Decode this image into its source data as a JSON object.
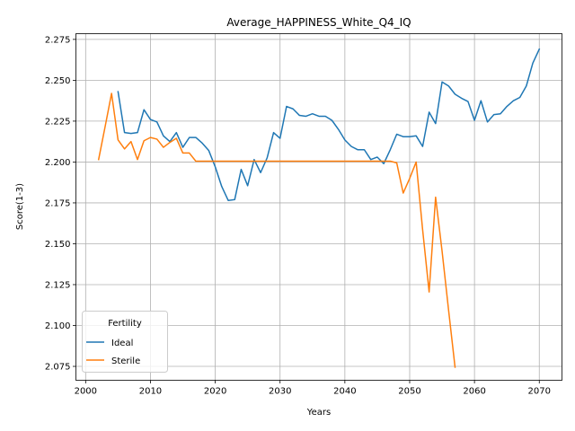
{
  "chart_data": {
    "type": "line",
    "title": "Average_HAPPINESS_White_Q4_IQ",
    "xlabel": "Years",
    "ylabel": "Score(1-3)",
    "xlim": [
      1998.5,
      2073.5
    ],
    "ylim": [
      2.0665,
      2.2785
    ],
    "xticks": [
      2000,
      2010,
      2020,
      2030,
      2040,
      2050,
      2060,
      2070
    ],
    "yticks": [
      2.075,
      2.1,
      2.125,
      2.15,
      2.175,
      2.2,
      2.225,
      2.25,
      2.275
    ],
    "grid": true,
    "legend": {
      "title": "Fertility",
      "placement": "lower-left"
    },
    "series": [
      {
        "name": "Ideal",
        "color": "#1f77b4",
        "points": [
          [
            2005,
            2.243
          ],
          [
            2006,
            2.218
          ],
          [
            2007,
            2.2175
          ],
          [
            2008,
            2.218
          ],
          [
            2009,
            2.232
          ],
          [
            2010,
            2.226
          ],
          [
            2011,
            2.2245
          ],
          [
            2012,
            2.216
          ],
          [
            2013,
            2.2125
          ],
          [
            2014,
            2.218
          ],
          [
            2015,
            2.209
          ],
          [
            2016,
            2.215
          ],
          [
            2017,
            2.215
          ],
          [
            2018,
            2.2115
          ],
          [
            2019,
            2.207
          ],
          [
            2020,
            2.197
          ],
          [
            2021,
            2.185
          ],
          [
            2022,
            2.1765
          ],
          [
            2023,
            2.177
          ],
          [
            2024,
            2.1955
          ],
          [
            2025,
            2.1855
          ],
          [
            2026,
            2.2015
          ],
          [
            2027,
            2.1935
          ],
          [
            2028,
            2.2025
          ],
          [
            2029,
            2.218
          ],
          [
            2030,
            2.2145
          ],
          [
            2031,
            2.234
          ],
          [
            2032,
            2.2325
          ],
          [
            2033,
            2.2285
          ],
          [
            2034,
            2.228
          ],
          [
            2035,
            2.2295
          ],
          [
            2036,
            2.228
          ],
          [
            2037,
            2.228
          ],
          [
            2038,
            2.2255
          ],
          [
            2039,
            2.22
          ],
          [
            2040,
            2.2135
          ],
          [
            2041,
            2.2095
          ],
          [
            2042,
            2.2075
          ],
          [
            2043,
            2.2075
          ],
          [
            2044,
            2.2015
          ],
          [
            2045,
            2.203
          ],
          [
            2046,
            2.199
          ],
          [
            2047,
            2.2075
          ],
          [
            2048,
            2.217
          ],
          [
            2049,
            2.2155
          ],
          [
            2050,
            2.2155
          ],
          [
            2051,
            2.216
          ],
          [
            2052,
            2.2095
          ],
          [
            2053,
            2.2305
          ],
          [
            2054,
            2.2235
          ],
          [
            2055,
            2.249
          ],
          [
            2056,
            2.2465
          ],
          [
            2057,
            2.2415
          ],
          [
            2058,
            2.239
          ],
          [
            2059,
            2.237
          ],
          [
            2060,
            2.2255
          ],
          [
            2061,
            2.2375
          ],
          [
            2062,
            2.2245
          ],
          [
            2063,
            2.229
          ],
          [
            2064,
            2.2295
          ],
          [
            2065,
            2.234
          ],
          [
            2066,
            2.2375
          ],
          [
            2067,
            2.2395
          ],
          [
            2068,
            2.2465
          ],
          [
            2069,
            2.2605
          ],
          [
            2070,
            2.269
          ]
        ]
      },
      {
        "name": "Sterile",
        "color": "#ff7f0e",
        "points": [
          [
            2002,
            2.2015
          ],
          [
            2003,
            2.2215
          ],
          [
            2004,
            2.242
          ],
          [
            2005,
            2.2135
          ],
          [
            2006,
            2.208
          ],
          [
            2007,
            2.2125
          ],
          [
            2008,
            2.2015
          ],
          [
            2009,
            2.213
          ],
          [
            2010,
            2.215
          ],
          [
            2011,
            2.214
          ],
          [
            2012,
            2.209
          ],
          [
            2013,
            2.212
          ],
          [
            2014,
            2.2145
          ],
          [
            2015,
            2.2055
          ],
          [
            2016,
            2.2055
          ],
          [
            2017,
            2.2005
          ],
          [
            2018,
            2.2005
          ],
          [
            2019,
            2.2005
          ],
          [
            2020,
            2.2005
          ],
          [
            2025,
            2.2005
          ],
          [
            2030,
            2.2005
          ],
          [
            2035,
            2.2005
          ],
          [
            2040,
            2.2005
          ],
          [
            2045,
            2.2005
          ],
          [
            2046,
            2.2005
          ],
          [
            2047,
            2.2005
          ],
          [
            2048,
            2.1995
          ],
          [
            2049,
            2.181
          ],
          [
            2050,
            2.19
          ],
          [
            2051,
            2.2
          ],
          [
            2052,
            2.1585
          ],
          [
            2053,
            2.1205
          ],
          [
            2054,
            2.1785
          ],
          [
            2055,
            2.1455
          ],
          [
            2056,
            2.1095
          ],
          [
            2057,
            2.0745
          ]
        ]
      }
    ]
  }
}
